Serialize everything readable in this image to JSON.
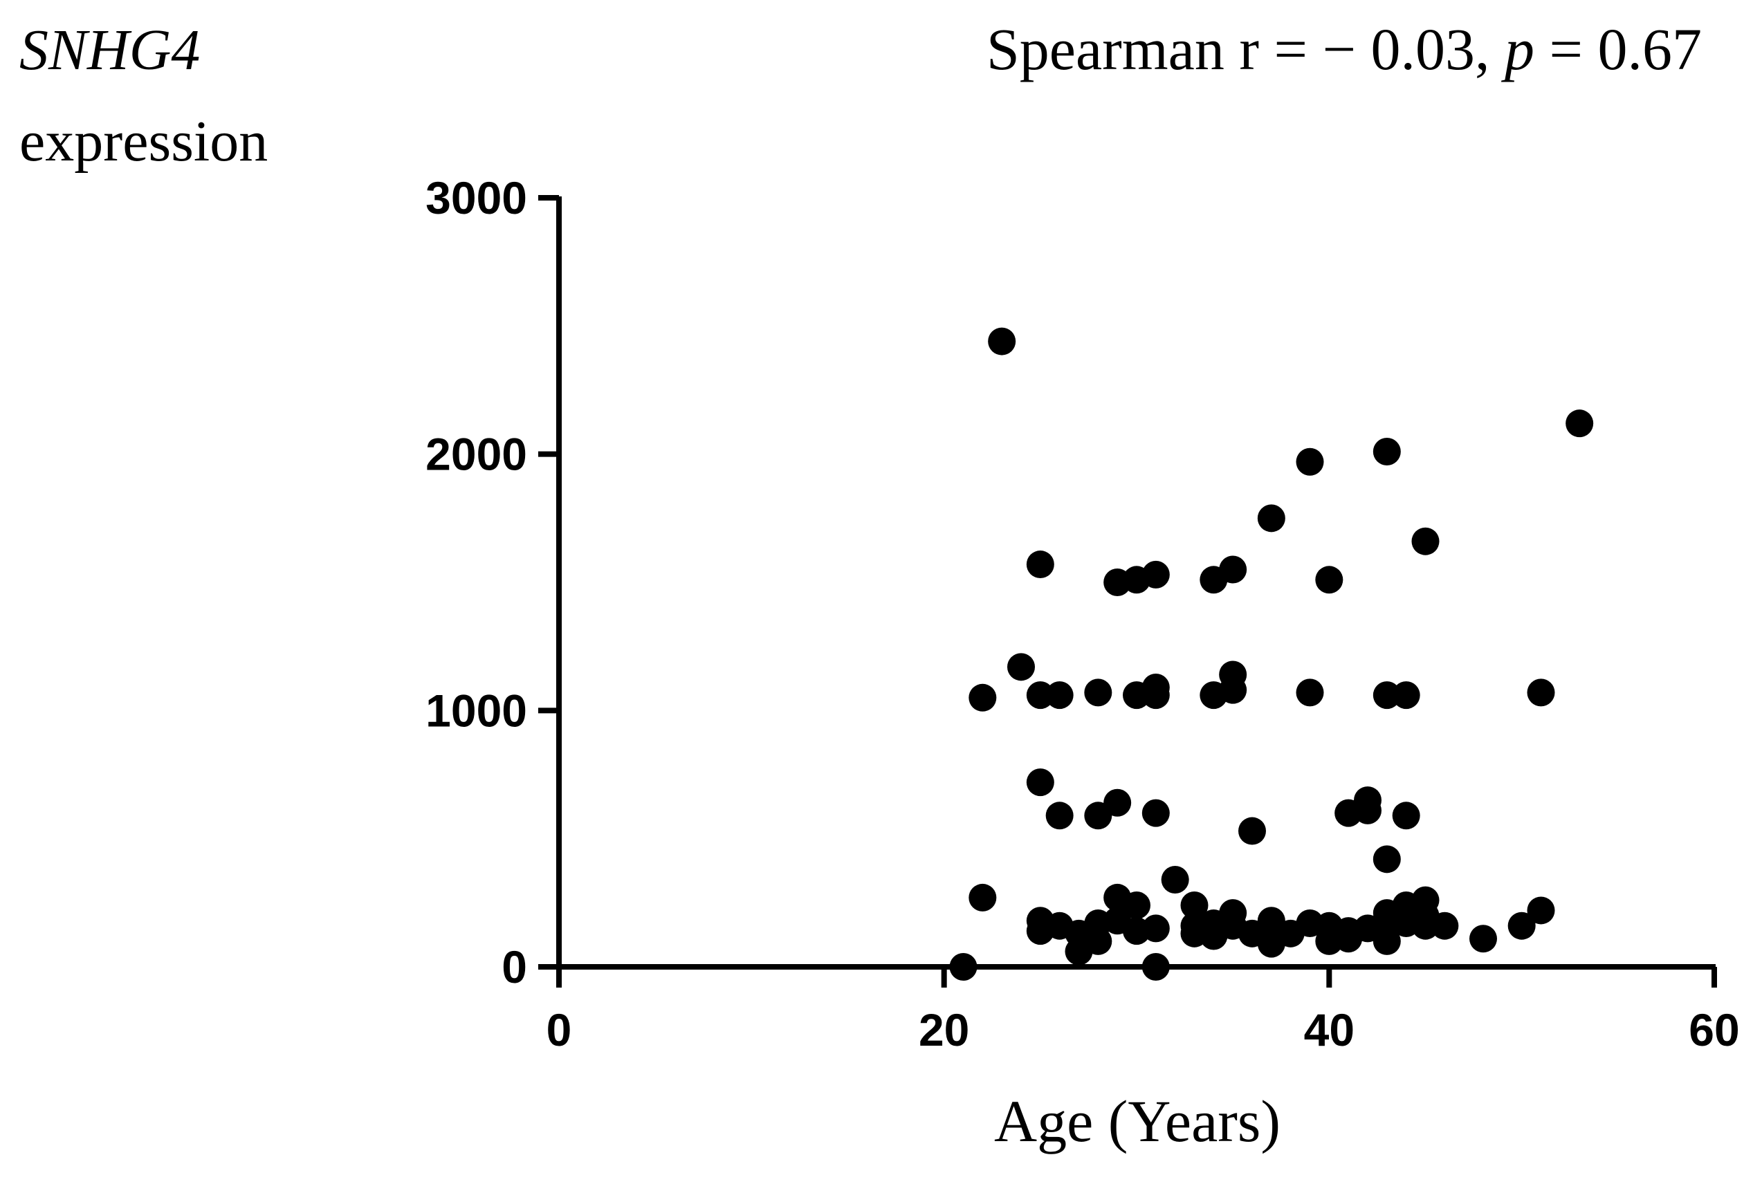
{
  "chart_data": {
    "type": "scatter",
    "ylabel_gene": "SNHG4",
    "ylabel_text": "expression",
    "xlabel": "Age (Years)",
    "annotation": {
      "prefix": "Spearman r = ",
      "minus": "−",
      "r_value": " 0.03, ",
      "p_label": "p",
      "p_value": " = 0.67"
    },
    "xlim": [
      0,
      60
    ],
    "ylim": [
      0,
      3000
    ],
    "x_ticks": [
      "0",
      "20",
      "40",
      "60"
    ],
    "y_ticks": [
      "0",
      "1000",
      "2000",
      "3000"
    ],
    "marker_color": "#000000",
    "points": [
      [
        21,
        0
      ],
      [
        22,
        1050
      ],
      [
        22,
        270
      ],
      [
        23,
        2440
      ],
      [
        24,
        1170
      ],
      [
        25,
        1570
      ],
      [
        25,
        1060
      ],
      [
        25,
        720
      ],
      [
        25,
        180
      ],
      [
        25,
        140
      ],
      [
        26,
        1060
      ],
      [
        26,
        590
      ],
      [
        26,
        160
      ],
      [
        27,
        130
      ],
      [
        27,
        60
      ],
      [
        28,
        1070
      ],
      [
        28,
        590
      ],
      [
        28,
        170
      ],
      [
        28,
        100
      ],
      [
        29,
        1500
      ],
      [
        29,
        640
      ],
      [
        29,
        270
      ],
      [
        29,
        180
      ],
      [
        30,
        1510
      ],
      [
        30,
        1060
      ],
      [
        30,
        240
      ],
      [
        30,
        140
      ],
      [
        31,
        1530
      ],
      [
        31,
        1090
      ],
      [
        31,
        1060
      ],
      [
        31,
        600
      ],
      [
        31,
        150
      ],
      [
        31,
        0
      ],
      [
        32,
        340
      ],
      [
        33,
        240
      ],
      [
        33,
        160
      ],
      [
        33,
        130
      ],
      [
        34,
        1510
      ],
      [
        34,
        1060
      ],
      [
        34,
        170
      ],
      [
        34,
        120
      ],
      [
        35,
        1550
      ],
      [
        35,
        1140
      ],
      [
        35,
        1080
      ],
      [
        35,
        210
      ],
      [
        35,
        160
      ],
      [
        36,
        530
      ],
      [
        36,
        130
      ],
      [
        37,
        1750
      ],
      [
        37,
        180
      ],
      [
        37,
        120
      ],
      [
        37,
        90
      ],
      [
        38,
        130
      ],
      [
        39,
        1970
      ],
      [
        39,
        1070
      ],
      [
        39,
        170
      ],
      [
        40,
        1510
      ],
      [
        40,
        160
      ],
      [
        40,
        100
      ],
      [
        41,
        600
      ],
      [
        41,
        140
      ],
      [
        41,
        110
      ],
      [
        42,
        650
      ],
      [
        42,
        610
      ],
      [
        42,
        150
      ],
      [
        43,
        2010
      ],
      [
        43,
        1060
      ],
      [
        43,
        420
      ],
      [
        43,
        210
      ],
      [
        43,
        150
      ],
      [
        43,
        100
      ],
      [
        44,
        1060
      ],
      [
        44,
        590
      ],
      [
        44,
        240
      ],
      [
        44,
        170
      ],
      [
        45,
        1660
      ],
      [
        45,
        260
      ],
      [
        45,
        200
      ],
      [
        45,
        160
      ],
      [
        46,
        160
      ],
      [
        48,
        110
      ],
      [
        50,
        160
      ],
      [
        51,
        1070
      ],
      [
        51,
        220
      ],
      [
        53,
        2120
      ]
    ]
  }
}
